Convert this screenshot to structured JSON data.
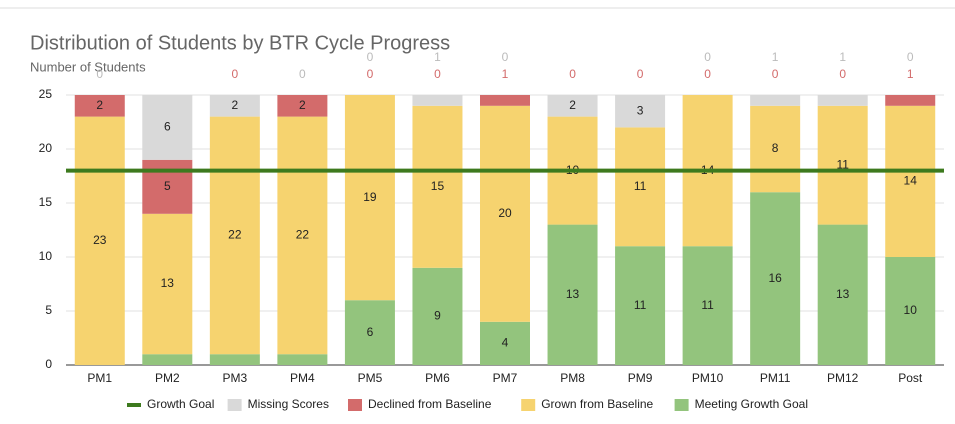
{
  "chart_data": {
    "type": "stacked_bar",
    "title": "Distribution of Students by BTR Cycle Progress",
    "y_label": "Number of Students",
    "categories": [
      "PM1",
      "PM2",
      "PM3",
      "PM4",
      "PM5",
      "PM6",
      "PM7",
      "PM8",
      "PM9",
      "PM10",
      "PM11",
      "PM12",
      "Post"
    ],
    "series": [
      {
        "name": "Growth Goal",
        "type": "line",
        "color": "#3d7a1e",
        "values": [
          18,
          18,
          18,
          18,
          18,
          18,
          18,
          18,
          18,
          18,
          18,
          18,
          18
        ]
      },
      {
        "name": "Missing Scores",
        "color": "#d9d9d9",
        "values": [
          0,
          6,
          2,
          0,
          0,
          1,
          0,
          2,
          3,
          0,
          1,
          1,
          0
        ]
      },
      {
        "name": "Declined from Baseline",
        "color": "#d36b6b",
        "values": [
          2,
          5,
          0,
          2,
          0,
          0,
          1,
          0,
          0,
          0,
          0,
          0,
          1
        ]
      },
      {
        "name": "Grown from Baseline",
        "color": "#f6d36f",
        "values": [
          23,
          13,
          22,
          22,
          19,
          15,
          20,
          10,
          11,
          14,
          8,
          11,
          14
        ]
      },
      {
        "name": "Meeting Growth Goal",
        "color": "#93c47d",
        "values": [
          0,
          1,
          1,
          1,
          6,
          9,
          4,
          13,
          11,
          11,
          16,
          13,
          10
        ]
      }
    ],
    "ylim": [
      0,
      25
    ],
    "yticks": [
      0,
      5,
      10,
      15,
      20,
      25
    ],
    "grid": true,
    "legend": "bottom"
  }
}
